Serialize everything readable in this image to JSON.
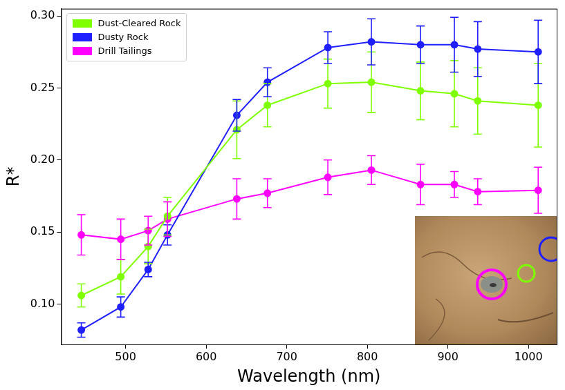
{
  "chart_data": {
    "type": "line",
    "x_label": "Wavelength (nm)",
    "y_label": "R*",
    "x": [
      445,
      494,
      528,
      552,
      638,
      676,
      751,
      805,
      866,
      908,
      937,
      1012
    ],
    "xlim": [
      420,
      1035
    ],
    "xticks": [
      500,
      600,
      700,
      800,
      900,
      1000
    ],
    "ylim": [
      0.072,
      0.305
    ],
    "yticks": [
      {
        "value": 0.1,
        "label": "0.10"
      },
      {
        "value": 0.15,
        "label": "0.15"
      },
      {
        "value": 0.2,
        "label": "0.20"
      },
      {
        "value": 0.25,
        "label": "0.25"
      },
      {
        "value": 0.3,
        "label": "0.30"
      }
    ],
    "grid": false,
    "legend": "upper left",
    "marker": "circle",
    "series": [
      {
        "name": "Dust-Cleared Rock",
        "color": "#7fff00",
        "values": [
          0.106,
          0.119,
          0.14,
          0.161,
          0.221,
          0.238,
          0.253,
          0.254,
          0.248,
          0.246,
          0.241,
          0.238
        ],
        "errors": [
          0.008,
          0.012,
          0.012,
          0.013,
          0.02,
          0.015,
          0.017,
          0.021,
          0.02,
          0.023,
          0.023,
          0.029
        ]
      },
      {
        "name": "Dusty Rock",
        "color": "#1f1fff",
        "values": [
          0.082,
          0.098,
          0.124,
          0.148,
          0.231,
          0.254,
          0.278,
          0.282,
          0.28,
          0.28,
          0.277,
          0.275
        ],
        "errors": [
          0.005,
          0.007,
          0.005,
          0.007,
          0.011,
          0.01,
          0.011,
          0.016,
          0.013,
          0.019,
          0.019,
          0.022
        ]
      },
      {
        "name": "Drill Tailings",
        "color": "#ff00ff",
        "values": [
          0.148,
          0.145,
          0.151,
          0.159,
          0.173,
          0.177,
          0.188,
          0.193,
          0.183,
          0.183,
          0.178,
          0.179
        ],
        "errors": [
          0.014,
          0.014,
          0.01,
          0.012,
          0.014,
          0.01,
          0.012,
          0.01,
          0.014,
          0.009,
          0.009,
          0.016
        ]
      }
    ]
  }
}
